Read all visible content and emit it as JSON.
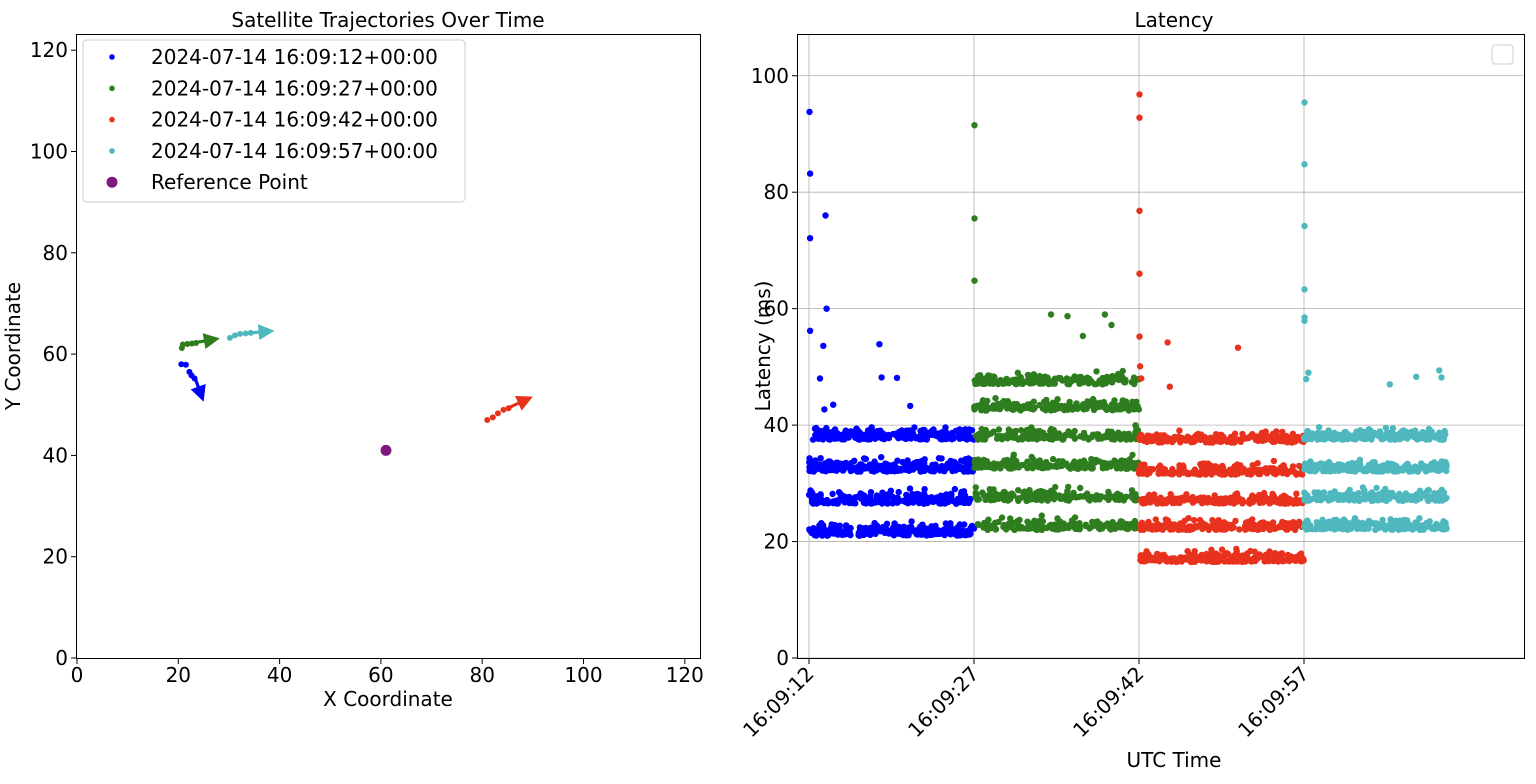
{
  "chart_data": [
    {
      "type": "scatter",
      "title": "Satellite Trajectories Over Time",
      "xlabel": "X Coordinate",
      "ylabel": "Y Coordinate",
      "xlim": [
        0,
        123
      ],
      "ylim": [
        0,
        123
      ],
      "xticks": [
        "0",
        "20",
        "40",
        "60",
        "80",
        "100",
        "120"
      ],
      "yticks": [
        "0",
        "20",
        "40",
        "60",
        "80",
        "100",
        "120"
      ],
      "grid": false,
      "legend_position": "top-left",
      "series": [
        {
          "name": "2024-07-14 16:09:12+00:00",
          "color": "#0000ff",
          "points": [
            [
              20.6,
              58.0
            ],
            [
              21.5,
              57.9
            ],
            [
              22.2,
              56.5
            ],
            [
              22.6,
              55.8
            ],
            [
              23.2,
              55.2
            ]
          ],
          "arrow": {
            "from": [
              23.3,
              55.3
            ],
            "to": [
              25.0,
              50.6
            ]
          }
        },
        {
          "name": "2024-07-14 16:09:27+00:00",
          "color": "#2e7d1e",
          "points": [
            [
              20.7,
              61.2
            ],
            [
              20.9,
              61.9
            ],
            [
              21.8,
              62.0
            ],
            [
              22.7,
              62.1
            ],
            [
              23.5,
              62.2
            ]
          ],
          "arrow": {
            "from": [
              23.5,
              62.3
            ],
            "to": [
              28.2,
              63.1
            ]
          }
        },
        {
          "name": "2024-07-14 16:09:42+00:00",
          "color": "#e8321e",
          "points": [
            [
              81.0,
              47.0
            ],
            [
              82.1,
              47.5
            ],
            [
              83.1,
              48.3
            ],
            [
              84.2,
              49.0
            ],
            [
              85.2,
              49.3
            ]
          ],
          "arrow": {
            "from": [
              85.4,
              49.5
            ],
            "to": [
              90.0,
              51.6
            ]
          }
        },
        {
          "name": "2024-07-14 16:09:57+00:00",
          "color": "#4fb8bf",
          "points": [
            [
              30.2,
              63.2
            ],
            [
              31.2,
              63.7
            ],
            [
              32.2,
              64.0
            ],
            [
              33.3,
              64.1
            ],
            [
              34.3,
              64.2
            ]
          ],
          "arrow": {
            "from": [
              34.5,
              64.2
            ],
            "to": [
              39.0,
              64.6
            ]
          }
        },
        {
          "name": "Reference Point",
          "color": "#7d1a7d",
          "points": [
            [
              61.0,
              41.0
            ]
          ]
        }
      ]
    },
    {
      "type": "scatter",
      "title": "Latency",
      "xlabel": "UTC Time",
      "ylabel": "Latency (ms)",
      "xlim": [
        "16:09:11.0",
        "16:10:17.0"
      ],
      "ylim": [
        0,
        107
      ],
      "xticks": [
        "16:09:12",
        "16:09:27",
        "16:09:42",
        "16:09:57"
      ],
      "yticks": [
        "0",
        "20",
        "40",
        "60",
        "80",
        "100"
      ],
      "grid": true,
      "legend_position": "top-right",
      "series": [
        {
          "color": "#0000ff",
          "x_range": [
            "16:09:12",
            "16:09:27"
          ],
          "count": 900,
          "bands": [
            21,
            26.5,
            32,
            37.5
          ],
          "band_spread": 2.2,
          "outliers": [
            [
              12.05,
              93.8
            ],
            [
              12.1,
              83.2
            ],
            [
              12.1,
              72.1
            ],
            [
              13.5,
              76.0
            ],
            [
              13.6,
              60.0
            ],
            [
              12.1,
              56.2
            ],
            [
              13.3,
              53.6
            ],
            [
              13.0,
              48.0
            ],
            [
              18.4,
              53.9
            ],
            [
              18.6,
              48.2
            ],
            [
              20.0,
              48.1
            ],
            [
              21.2,
              43.3
            ],
            [
              13.4,
              42.7
            ],
            [
              14.2,
              43.5
            ]
          ]
        },
        {
          "color": "#2e7d1e",
          "x_range": [
            "16:09:27",
            "16:09:42"
          ],
          "count": 1000,
          "bands": [
            22,
            27,
            32.5,
            37.5,
            42.5,
            47
          ],
          "band_spread": 2.0,
          "outliers": [
            [
              27.05,
              91.5
            ],
            [
              27.05,
              75.5
            ],
            [
              27.05,
              64.8
            ],
            [
              34.0,
              59.0
            ],
            [
              35.5,
              58.7
            ],
            [
              38.9,
              59.0
            ],
            [
              39.5,
              57.2
            ],
            [
              36.9,
              55.3
            ]
          ]
        },
        {
          "color": "#e8321e",
          "x_range": [
            "16:09:42",
            "16:09:57"
          ],
          "count": 1000,
          "bands": [
            16.5,
            22,
            26.5,
            31.5,
            37
          ],
          "band_spread": 1.8,
          "outliers": [
            [
              42.05,
              96.8
            ],
            [
              42.05,
              92.8
            ],
            [
              42.05,
              76.8
            ],
            [
              42.05,
              66.0
            ],
            [
              42.05,
              55.2
            ],
            [
              42.1,
              50.1
            ],
            [
              44.6,
              54.2
            ],
            [
              51.0,
              53.3
            ],
            [
              42.2,
              48.0
            ],
            [
              44.8,
              46.6
            ]
          ]
        },
        {
          "color": "#4fb8bf",
          "x_range": [
            "16:09:57",
            "16:10:10"
          ],
          "count": 850,
          "bands": [
            22,
            27,
            32,
            37.5
          ],
          "band_spread": 1.8,
          "outliers": [
            [
              57.05,
              95.4
            ],
            [
              57.05,
              84.8
            ],
            [
              57.05,
              74.2
            ],
            [
              57.05,
              63.3
            ],
            [
              57.05,
              58.5
            ],
            [
              57.05,
              57.9
            ],
            [
              69.3,
              49.4
            ],
            [
              57.4,
              49.0
            ],
            [
              67.2,
              48.3
            ],
            [
              69.5,
              48.2
            ],
            [
              57.2,
              47.9
            ],
            [
              64.8,
              47.0
            ]
          ]
        }
      ]
    }
  ]
}
